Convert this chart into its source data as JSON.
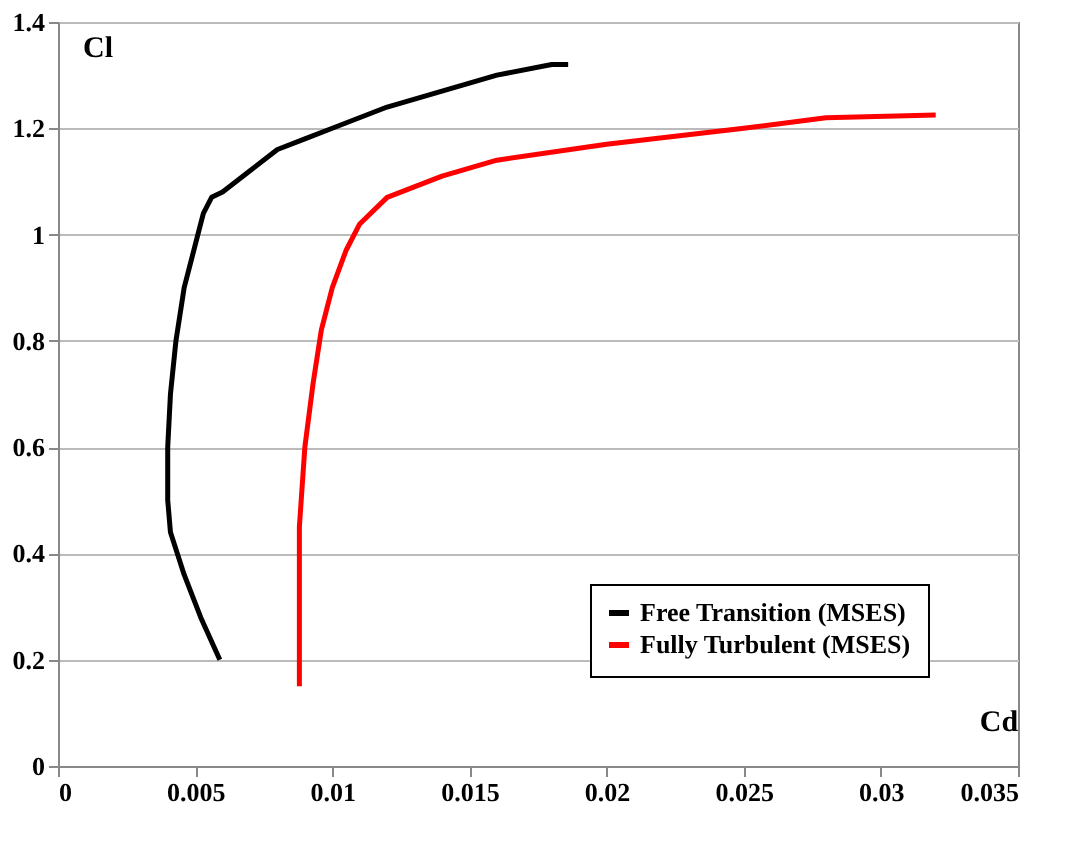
{
  "chart_data": {
    "type": "line",
    "xlabel": "Cd",
    "ylabel": "Cl",
    "xlim": [
      0,
      0.035
    ],
    "ylim": [
      0,
      1.4
    ],
    "xticks": [
      0,
      0.005,
      0.01,
      0.015,
      0.02,
      0.025,
      0.03,
      0.035
    ],
    "yticks": [
      0,
      0.2,
      0.4,
      0.6,
      0.8,
      1,
      1.2,
      1.4
    ],
    "grid": "y",
    "legend": "bottom right",
    "line_style": "solid",
    "marker": "none",
    "series": [
      {
        "name": "Free Transition (MSES)",
        "color": "#000000",
        "x": [
          0.0059,
          0.0052,
          0.0046,
          0.0041,
          0.004,
          0.004,
          0.0041,
          0.0043,
          0.0046,
          0.005,
          0.0053,
          0.0056,
          0.006,
          0.007,
          0.008,
          0.009,
          0.01,
          0.012,
          0.014,
          0.016,
          0.018,
          0.0186
        ],
        "values": [
          0.2,
          0.28,
          0.36,
          0.44,
          0.5,
          0.6,
          0.7,
          0.8,
          0.9,
          0.98,
          1.04,
          1.07,
          1.08,
          1.12,
          1.16,
          1.18,
          1.2,
          1.24,
          1.27,
          1.3,
          1.32,
          1.32
        ]
      },
      {
        "name": "Fully Turbulent (MSES)",
        "color": "#ff0000",
        "x": [
          0.0088,
          0.0088,
          0.0088,
          0.009,
          0.0093,
          0.0096,
          0.01,
          0.0105,
          0.011,
          0.012,
          0.014,
          0.016,
          0.02,
          0.025,
          0.028,
          0.032
        ],
        "values": [
          0.15,
          0.3,
          0.45,
          0.6,
          0.72,
          0.82,
          0.9,
          0.97,
          1.02,
          1.07,
          1.11,
          1.14,
          1.17,
          1.2,
          1.22,
          1.225
        ]
      }
    ]
  }
}
